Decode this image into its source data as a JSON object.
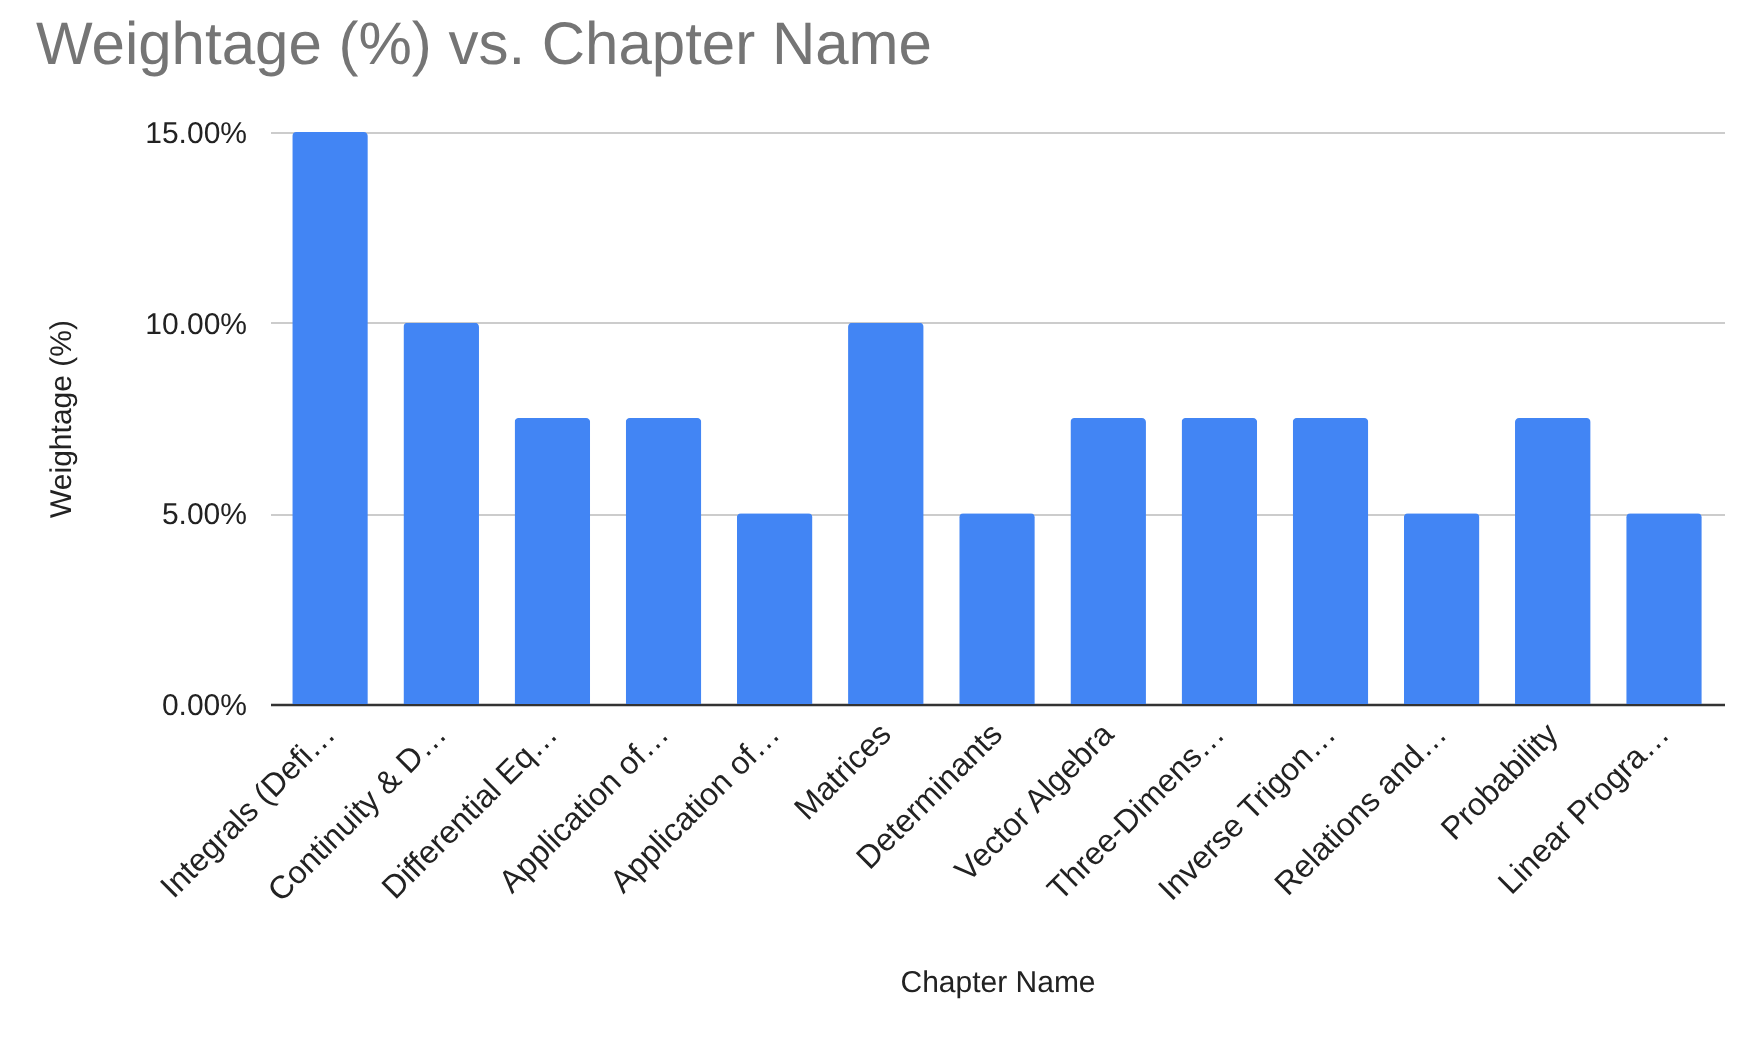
{
  "chart_data": {
    "type": "bar",
    "title": "Weightage (%) vs. Chapter Name",
    "xlabel": "Chapter Name",
    "ylabel": "Weightage (%)",
    "categories": [
      "Integrals (Defi…",
      "Continuity & D…",
      "Differential Eq…",
      "Application of…",
      "Application of…",
      "Matrices",
      "Determinants",
      "Vector Algebra",
      "Three-Dimens…",
      "Inverse Trigon…",
      "Relations and…",
      "Probability",
      "Linear Progra…"
    ],
    "values": [
      15,
      10,
      7.5,
      7.5,
      5,
      10,
      5,
      7.5,
      7.5,
      7.5,
      5,
      7.5,
      5
    ],
    "color": "#4285f4",
    "ylim": [
      0,
      15
    ],
    "yticks": [
      {
        "value": 0,
        "label": "0.00%"
      },
      {
        "value": 5,
        "label": "5.00%"
      },
      {
        "value": 10,
        "label": "10.00%"
      },
      {
        "value": 15,
        "label": "15.00%"
      }
    ],
    "grid": "y"
  }
}
